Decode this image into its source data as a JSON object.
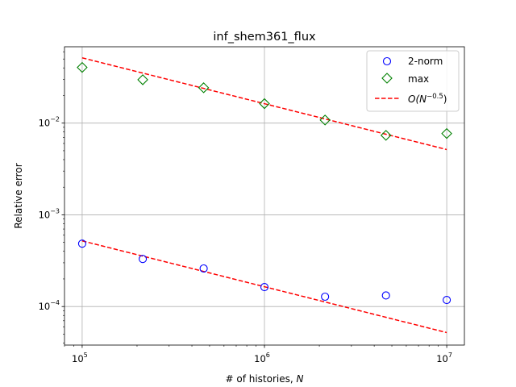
{
  "chart_data": {
    "type": "scatter",
    "title": "inf_shem361_flux",
    "xlabel": "# of histories, ",
    "xlabel_var": "N",
    "ylabel": "Relative error",
    "xscale": "log",
    "yscale": "log",
    "xlim": [
      80000,
      12500000
    ],
    "ylim": [
      3.8e-05,
      0.068
    ],
    "grid": true,
    "legend_position": "top-right",
    "x_ticks": [
      {
        "value": 100000,
        "base": "10",
        "exp": "5"
      },
      {
        "value": 1000000,
        "base": "10",
        "exp": "6"
      },
      {
        "value": 10000000,
        "base": "10",
        "exp": "7"
      }
    ],
    "y_ticks": [
      {
        "value": 0.0001,
        "base": "10",
        "exp": "−4"
      },
      {
        "value": 0.001,
        "base": "10",
        "exp": "−3"
      },
      {
        "value": 0.01,
        "base": "10",
        "exp": "−2"
      }
    ],
    "series": [
      {
        "name": "2-norm",
        "marker": "circle",
        "color": "#0000ff",
        "points": [
          {
            "x": 100000,
            "y": 0.000485
          },
          {
            "x": 215000,
            "y": 0.00033
          },
          {
            "x": 464000,
            "y": 0.00026
          },
          {
            "x": 1000000,
            "y": 0.000163
          },
          {
            "x": 2150000,
            "y": 0.000128
          },
          {
            "x": 4640000,
            "y": 0.000132
          },
          {
            "x": 10000000,
            "y": 0.000118
          }
        ]
      },
      {
        "name": "max",
        "marker": "diamond",
        "color": "#008000",
        "points": [
          {
            "x": 100000,
            "y": 0.0405
          },
          {
            "x": 215000,
            "y": 0.0297
          },
          {
            "x": 464000,
            "y": 0.0243
          },
          {
            "x": 1000000,
            "y": 0.0163
          },
          {
            "x": 2150000,
            "y": 0.0108
          },
          {
            "x": 4640000,
            "y": 0.00735
          },
          {
            "x": 10000000,
            "y": 0.0077
          }
        ]
      }
    ],
    "reference_lines": [
      {
        "legend": true,
        "label_prefix": "O(",
        "label_var": "N",
        "label_exp": "−0.5",
        "label_suffix": ")",
        "color": "#ff0000",
        "dash": "dashed",
        "points": [
          {
            "x": 100000,
            "y": 0.00052
          },
          {
            "x": 10000000,
            "y": 5.2e-05
          }
        ]
      },
      {
        "legend": false,
        "color": "#ff0000",
        "dash": "dashed",
        "points": [
          {
            "x": 100000,
            "y": 0.0515
          },
          {
            "x": 10000000,
            "y": 0.00515
          }
        ]
      }
    ]
  }
}
